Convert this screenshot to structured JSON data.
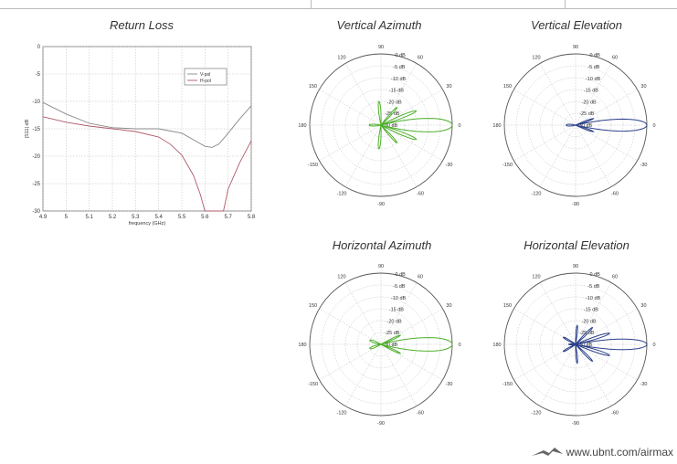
{
  "colors": {
    "v_pol": "#888888",
    "h_pol": "#b05a68",
    "green": "#4caf2a",
    "blue": "#2a3f8a",
    "grid": "#bbbbbb"
  },
  "footer": {
    "url": "www.ubnt.com/airmax",
    "logo_icon": "ubiquiti-logo-icon"
  },
  "polar_common": {
    "ring_labels": [
      "0 dB",
      "-5 dB",
      "-10 dB",
      "-15 dB",
      "-20 dB",
      "-25 dB",
      "-30 dB"
    ],
    "angle_labels": [
      "0",
      "30",
      "60",
      "90",
      "120",
      "150",
      "180",
      "-150",
      "-120",
      "-90",
      "-60",
      "-30"
    ],
    "rmin_db": -30,
    "rmax_db": 0
  },
  "chart_data": [
    {
      "type": "line",
      "title": "Return Loss",
      "xlabel": "frequency (GHz)",
      "ylabel": "|S11| dB",
      "xlim": [
        4.9,
        5.8
      ],
      "ylim": [
        -30,
        0
      ],
      "xticks": [
        "4.9",
        "5",
        "5.1",
        "5.2",
        "5.3",
        "5.4",
        "5.5",
        "5.6",
        "5.7",
        "5.8"
      ],
      "yticks": [
        "0",
        "-5",
        "-10",
        "-15",
        "-20",
        "-25",
        "-30"
      ],
      "grid": true,
      "legend_position": "top-right",
      "series": [
        {
          "name": "V-pol",
          "x": [
            4.9,
            5.0,
            5.1,
            5.2,
            5.3,
            5.4,
            5.5,
            5.55,
            5.6,
            5.63,
            5.66,
            5.7,
            5.75,
            5.8
          ],
          "values": [
            -10.2,
            -12.3,
            -14.0,
            -14.8,
            -15.0,
            -15.0,
            -15.8,
            -17.0,
            -18.2,
            -18.4,
            -17.8,
            -15.8,
            -13.2,
            -10.8
          ]
        },
        {
          "name": "H-pol",
          "x": [
            4.9,
            5.0,
            5.1,
            5.2,
            5.3,
            5.4,
            5.45,
            5.5,
            5.55,
            5.58,
            5.6,
            5.68,
            5.7,
            5.75,
            5.8
          ],
          "values": [
            -12.8,
            -13.8,
            -14.5,
            -15.0,
            -15.5,
            -16.5,
            -17.8,
            -19.8,
            -23.5,
            -27.0,
            -30.0,
            -30.0,
            -26.0,
            -21.2,
            -17.2
          ]
        }
      ]
    },
    {
      "type": "polar",
      "title": "Vertical Azimuth",
      "series": [
        {
          "color_key": "green",
          "lobes": [
            [
              0,
              0,
              9
            ],
            [
              22,
              -14,
              5
            ],
            [
              -22,
              -14,
              5
            ],
            [
              48,
              -20,
              6
            ],
            [
              -48,
              -20,
              6
            ],
            [
              95,
              -20,
              8
            ],
            [
              -95,
              -20,
              8
            ],
            [
              180,
              -25,
              18
            ]
          ]
        }
      ]
    },
    {
      "type": "polar",
      "title": "Vertical Elevation",
      "series": [
        {
          "color_key": "blue",
          "lobes": [
            [
              0,
              0,
              8
            ],
            [
              20,
              -22,
              6
            ],
            [
              -20,
              -22,
              6
            ],
            [
              180,
              -26,
              25
            ]
          ]
        }
      ]
    },
    {
      "type": "polar",
      "title": "Horizontal Azimuth",
      "series": [
        {
          "color_key": "green",
          "lobes": [
            [
              0,
              0,
              9
            ],
            [
              25,
              -21,
              6
            ],
            [
              -25,
              -21,
              6
            ],
            [
              160,
              -25,
              18
            ],
            [
              -160,
              -25,
              18
            ]
          ]
        }
      ]
    },
    {
      "type": "polar",
      "title": "Horizontal Elevation",
      "series": [
        {
          "color_key": "blue",
          "lobes": [
            [
              0,
              0,
              7
            ],
            [
              18,
              -15,
              5
            ],
            [
              -18,
              -15,
              5
            ],
            [
              45,
              -20,
              6
            ],
            [
              -45,
              -20,
              6
            ],
            [
              85,
              -22,
              7
            ],
            [
              -85,
              -22,
              7
            ],
            [
              150,
              -24,
              10
            ],
            [
              -150,
              -24,
              10
            ],
            [
              180,
              -27,
              18
            ]
          ]
        }
      ]
    }
  ]
}
